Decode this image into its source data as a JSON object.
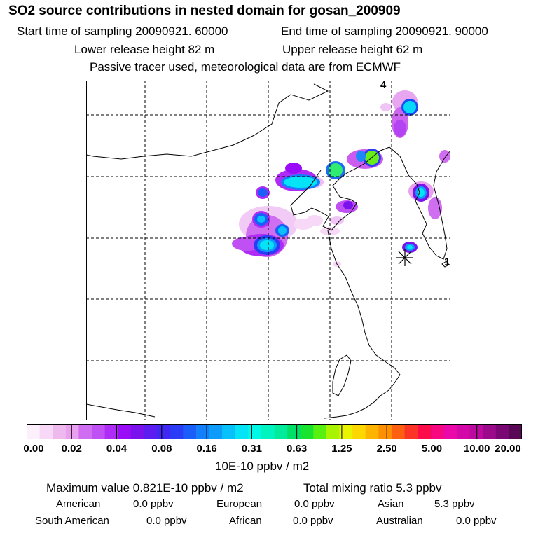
{
  "header": {
    "title": "SO2 source contributions in nested domain for gosan_200909",
    "start_label": "Start time of sampling 20090921. 60000",
    "end_label": "End time of sampling 20090921. 90000",
    "lower_height": "Lower release height   82 m",
    "upper_height": "Upper release height   62 m",
    "tracer_note": "Passive tracer used, meteorological data are from ECMWF"
  },
  "map": {
    "markers": [
      {
        "label": "4",
        "kind": "corner-label"
      },
      {
        "label": "1",
        "kind": "receptor-label"
      }
    ]
  },
  "colorbar": {
    "labels": [
      "0.00",
      "0.02",
      "0.04",
      "0.08",
      "0.16",
      "0.31",
      "0.63",
      "1.25",
      "2.50",
      "5.00",
      "10.00",
      "20.00"
    ],
    "colors": [
      "#fdf0fd",
      "#f7d8f7",
      "#eebaee",
      "#e9a0ee",
      "#cf6ef0",
      "#c050f4",
      "#ae2cf5",
      "#9a0cf8",
      "#7a12ee",
      "#5c1ef0",
      "#3e28f2",
      "#2a3cf6",
      "#1a5df8",
      "#1280fa",
      "#0d9cfa",
      "#08c0fa",
      "#04e4f6",
      "#00f8e6",
      "#00f4c0",
      "#00ec9a",
      "#00e068",
      "#18e430",
      "#58f010",
      "#a8f400",
      "#e8f400",
      "#fcd800",
      "#fcb400",
      "#fc9000",
      "#fc6010",
      "#fc3428",
      "#fc0c48",
      "#f80880",
      "#ea08a8",
      "#d408a8",
      "#bc0aa0",
      "#9c0a8c",
      "#7a0874",
      "#580854"
    ],
    "units": "10E-10 ppbv / m2"
  },
  "summary": {
    "max_value": "Maximum value  0.821E-10 ppbv / m2",
    "total_mixing": "Total mixing ratio       5.3 ppbv",
    "regions": [
      {
        "name": "American",
        "value": "0.0 ppbv"
      },
      {
        "name": "European",
        "value": "0.0 ppbv"
      },
      {
        "name": "Asian",
        "value": "5.3 ppbv"
      },
      {
        "name": "South American",
        "value": "0.0 ppbv"
      },
      {
        "name": "African",
        "value": "0.0 ppbv"
      },
      {
        "name": "Australian",
        "value": "0.0 ppbv"
      }
    ]
  }
}
